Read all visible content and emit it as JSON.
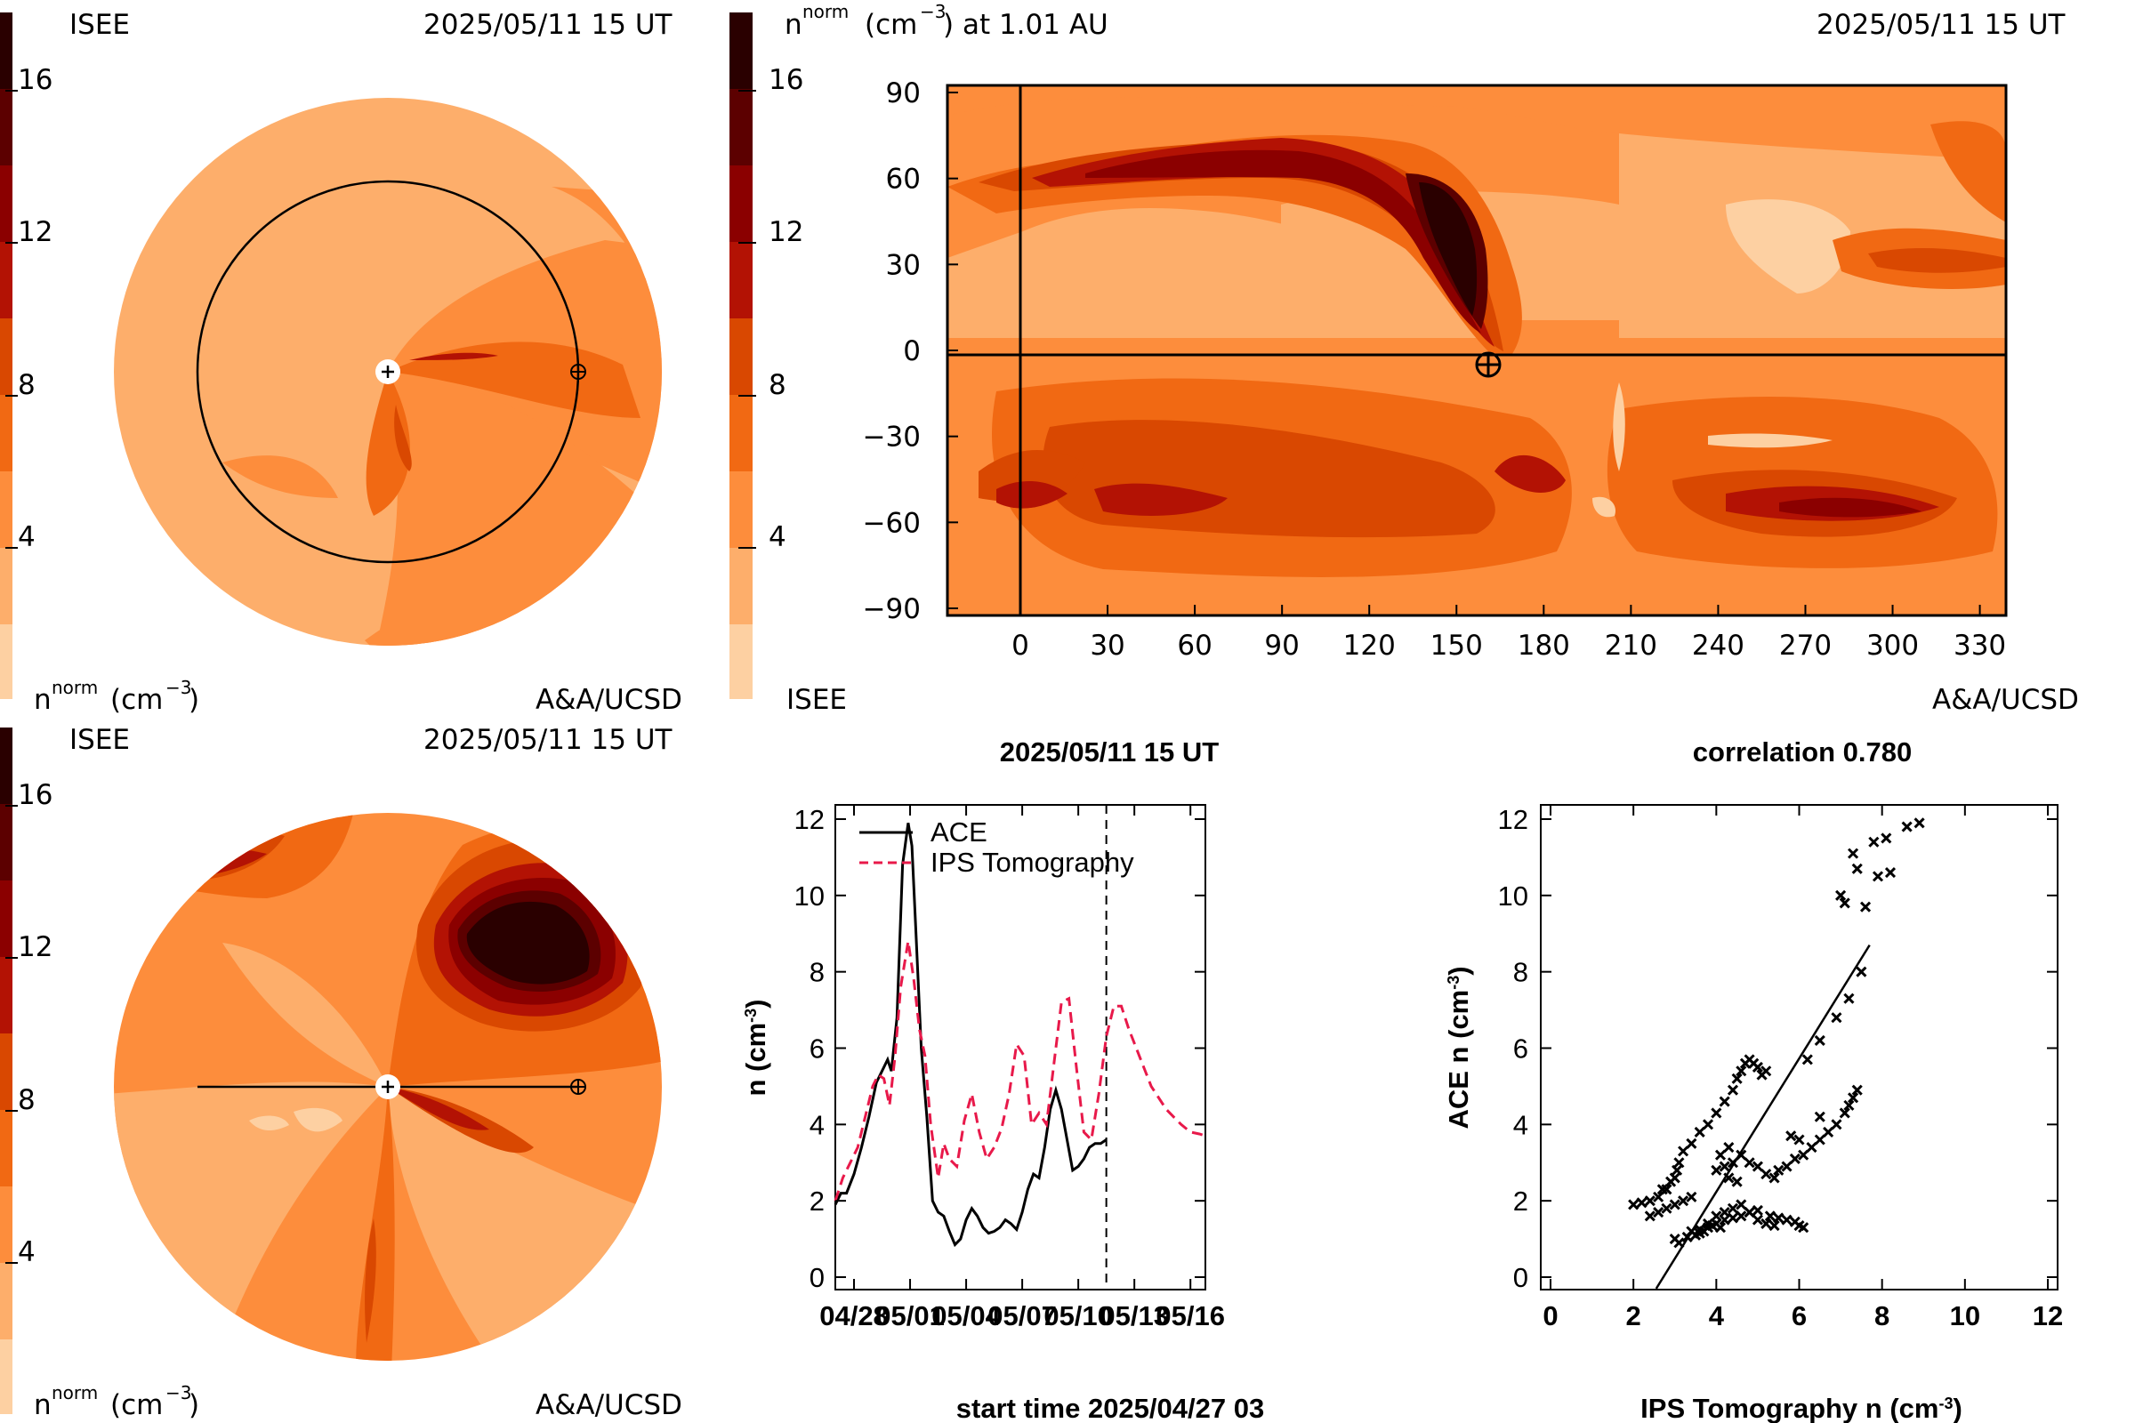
{
  "colors": {
    "scale": [
      "#fdd0a2",
      "#fdae6b",
      "#fd8d3c",
      "#f16913",
      "#d94801",
      "#b31204",
      "#8b0000",
      "#5c0000",
      "#2a0000"
    ],
    "ips_line": "#e8194a",
    "ace_line": "#000000"
  },
  "top_left": {
    "org": "ISEE",
    "datetime": "2025/05/11 15 UT",
    "units_sup": "norm",
    "units_prefix": "n",
    "units_suffix": "(cm",
    "units_exp": "−3",
    "units_close": ")",
    "credit": "A&A/UCSD",
    "colorbar_ticks": [
      "4",
      "8",
      "12",
      "16"
    ]
  },
  "top_right": {
    "units_prefix": "n",
    "units_sup": "norm",
    "units_text": "(cm",
    "units_exp": "−3",
    "units_tail": ") at 1.01 AU",
    "datetime": "2025/05/11 15 UT",
    "org": "ISEE",
    "credit": "A&A/UCSD",
    "colorbar_ticks": [
      "4",
      "8",
      "12",
      "16"
    ],
    "x_ticks": [
      "0",
      "30",
      "60",
      "90",
      "120",
      "150",
      "180",
      "210",
      "240",
      "270",
      "300",
      "330"
    ],
    "y_ticks": [
      "90",
      "60",
      "30",
      "0",
      "−30",
      "−60",
      "−90"
    ]
  },
  "bottom_left": {
    "org": "ISEE",
    "datetime": "2025/05/11 15 UT",
    "units_prefix": "n",
    "units_sup": "norm",
    "units_suffix": "(cm",
    "units_exp": "−3",
    "units_close": ")",
    "credit": "A&A/UCSD",
    "colorbar_ticks": [
      "4",
      "8",
      "12",
      "16"
    ]
  },
  "chart_data": [
    {
      "type": "line",
      "title": "2025/05/11 15 UT",
      "xlabel": "start time 2025/04/27 03",
      "ylabel_main": "n (cm",
      "ylabel_exp": "-3",
      "ylabel_close": ")",
      "ylim": [
        0,
        12
      ],
      "yticks": [
        "0",
        "2",
        "4",
        "6",
        "8",
        "10",
        "12"
      ],
      "xticks": [
        "04/28",
        "05/01",
        "05/04",
        "05/07",
        "05/10",
        "05/13",
        "05/16"
      ],
      "xtick_days": [
        1.0,
        4.0,
        7.0,
        10.0,
        13.0,
        16.0,
        19.0
      ],
      "xlim_days": [
        0,
        19.8
      ],
      "now_marker_day": 14.5,
      "series": [
        {
          "name": "ACE",
          "x": [
            0,
            0.3,
            0.6,
            1.0,
            1.4,
            1.8,
            2.2,
            2.5,
            2.8,
            3.0,
            3.3,
            3.6,
            3.9,
            4.1,
            4.3,
            4.6,
            4.9,
            5.2,
            5.5,
            5.8,
            6.1,
            6.4,
            6.7,
            7.0,
            7.3,
            7.6,
            7.9,
            8.2,
            8.5,
            8.8,
            9.1,
            9.4,
            9.7,
            10.0,
            10.3,
            10.6,
            10.9,
            11.2,
            11.5,
            11.8,
            12.1,
            12.4,
            12.7,
            13.0,
            13.3,
            13.6,
            13.9,
            14.2,
            14.5
          ],
          "values": [
            1.9,
            2.2,
            2.2,
            2.7,
            3.4,
            4.2,
            5.1,
            5.4,
            5.7,
            5.4,
            6.8,
            10.8,
            11.9,
            11.3,
            9.2,
            6.0,
            4.2,
            2.0,
            1.7,
            1.6,
            1.2,
            0.85,
            1.0,
            1.5,
            1.8,
            1.6,
            1.3,
            1.15,
            1.2,
            1.3,
            1.5,
            1.4,
            1.25,
            1.7,
            2.3,
            2.7,
            2.6,
            3.4,
            4.4,
            4.9,
            4.4,
            3.6,
            2.8,
            2.9,
            3.1,
            3.4,
            3.5,
            3.5,
            3.6
          ]
        },
        {
          "name": "IPS Tomography",
          "x": [
            0,
            0.4,
            0.8,
            1.2,
            1.6,
            2.0,
            2.3,
            2.6,
            2.9,
            3.2,
            3.5,
            3.9,
            4.2,
            4.5,
            4.8,
            5.1,
            5.5,
            5.8,
            6.1,
            6.5,
            6.9,
            7.3,
            7.7,
            8.1,
            8.5,
            8.9,
            9.3,
            9.7,
            10.1,
            10.5,
            10.9,
            11.3,
            11.7,
            12.1,
            12.5,
            12.9,
            13.3,
            13.7,
            14.1,
            14.5,
            14.9,
            15.3,
            15.7,
            16.1,
            16.5,
            16.9,
            17.3,
            17.7,
            18.1,
            18.5,
            19.0,
            19.5,
            19.8
          ],
          "values": [
            2.0,
            2.6,
            3.0,
            3.4,
            4.2,
            5.0,
            5.3,
            5.2,
            4.5,
            5.8,
            7.6,
            8.8,
            7.8,
            6.5,
            5.8,
            4.0,
            2.6,
            3.5,
            3.1,
            2.9,
            4.1,
            4.8,
            3.8,
            3.1,
            3.4,
            3.9,
            4.8,
            6.1,
            5.8,
            4.0,
            4.3,
            4.0,
            5.6,
            7.2,
            7.3,
            5.5,
            3.8,
            3.6,
            4.8,
            6.3,
            7.1,
            7.1,
            6.5,
            6.0,
            5.5,
            5.0,
            4.7,
            4.4,
            4.2,
            4.0,
            3.8,
            3.75,
            3.7
          ]
        }
      ]
    },
    {
      "type": "scatter",
      "title": "correlation 0.780",
      "xlabel_main": "IPS Tomography n (cm",
      "xlabel_exp": "-3",
      "xlabel_close": ")",
      "ylabel_main": "ACE n (cm",
      "ylabel_exp": "-3",
      "ylabel_close": ")",
      "xlim": [
        0,
        12
      ],
      "ylim": [
        0,
        12
      ],
      "xticks": [
        "0",
        "2",
        "4",
        "6",
        "8",
        "10",
        "12"
      ],
      "yticks": [
        "0",
        "2",
        "4",
        "6",
        "8",
        "10",
        "12"
      ],
      "fit_line": {
        "x": [
          2.55,
          7.7
        ],
        "y": [
          -0.3,
          8.7
        ]
      },
      "points": [
        [
          2.0,
          1.9
        ],
        [
          2.2,
          1.95
        ],
        [
          2.4,
          2.0
        ],
        [
          2.6,
          2.1
        ],
        [
          2.7,
          2.3
        ],
        [
          2.8,
          2.3
        ],
        [
          2.9,
          2.5
        ],
        [
          3.0,
          2.6
        ],
        [
          3.05,
          2.8
        ],
        [
          3.1,
          3.0
        ],
        [
          3.2,
          3.3
        ],
        [
          3.4,
          3.5
        ],
        [
          3.6,
          3.8
        ],
        [
          3.8,
          4.0
        ],
        [
          4.0,
          4.3
        ],
        [
          4.2,
          4.6
        ],
        [
          4.4,
          4.9
        ],
        [
          4.5,
          5.2
        ],
        [
          4.6,
          5.4
        ],
        [
          4.7,
          5.6
        ],
        [
          4.8,
          5.7
        ],
        [
          4.9,
          5.6
        ],
        [
          5.0,
          5.5
        ],
        [
          5.1,
          5.3
        ],
        [
          5.2,
          5.4
        ],
        [
          2.4,
          1.6
        ],
        [
          2.6,
          1.7
        ],
        [
          2.8,
          1.8
        ],
        [
          3.0,
          1.9
        ],
        [
          3.2,
          2.0
        ],
        [
          3.4,
          2.1
        ],
        [
          3.0,
          1.0
        ],
        [
          3.1,
          0.9
        ],
        [
          3.3,
          1.05
        ],
        [
          3.5,
          1.1
        ],
        [
          3.6,
          1.15
        ],
        [
          3.7,
          1.2
        ],
        [
          3.8,
          1.3
        ],
        [
          3.9,
          1.35
        ],
        [
          4.0,
          1.4
        ],
        [
          4.1,
          1.3
        ],
        [
          4.2,
          1.5
        ],
        [
          4.4,
          1.55
        ],
        [
          4.6,
          1.6
        ],
        [
          4.8,
          1.7
        ],
        [
          5.0,
          1.75
        ],
        [
          5.3,
          1.6
        ],
        [
          5.5,
          1.55
        ],
        [
          5.7,
          1.5
        ],
        [
          5.9,
          1.45
        ],
        [
          6.0,
          1.35
        ],
        [
          6.1,
          1.3
        ],
        [
          3.4,
          1.2
        ],
        [
          3.6,
          1.25
        ],
        [
          3.8,
          1.4
        ],
        [
          4.0,
          1.6
        ],
        [
          4.2,
          1.7
        ],
        [
          4.4,
          1.8
        ],
        [
          4.6,
          1.9
        ],
        [
          4.8,
          1.7
        ],
        [
          5.0,
          1.5
        ],
        [
          5.2,
          1.4
        ],
        [
          5.4,
          1.35
        ],
        [
          4.0,
          2.8
        ],
        [
          4.2,
          2.9
        ],
        [
          4.4,
          3.0
        ],
        [
          4.6,
          3.2
        ],
        [
          4.8,
          3.0
        ],
        [
          5.0,
          2.9
        ],
        [
          5.2,
          2.7
        ],
        [
          5.4,
          2.6
        ],
        [
          5.5,
          2.8
        ],
        [
          5.7,
          2.9
        ],
        [
          5.9,
          3.1
        ],
        [
          6.1,
          3.2
        ],
        [
          6.3,
          3.4
        ],
        [
          6.5,
          3.6
        ],
        [
          6.7,
          3.8
        ],
        [
          6.9,
          4.0
        ],
        [
          7.1,
          4.3
        ],
        [
          7.2,
          4.5
        ],
        [
          7.3,
          4.7
        ],
        [
          6.0,
          3.6
        ],
        [
          5.8,
          3.7
        ],
        [
          4.3,
          2.6
        ],
        [
          4.5,
          2.5
        ],
        [
          6.5,
          4.2
        ],
        [
          7.4,
          4.9
        ],
        [
          4.3,
          3.4
        ],
        [
          4.1,
          3.2
        ],
        [
          6.2,
          5.7
        ],
        [
          6.5,
          6.2
        ],
        [
          6.9,
          6.8
        ],
        [
          7.2,
          7.3
        ],
        [
          7.5,
          8.0
        ],
        [
          7.0,
          10.0
        ],
        [
          7.1,
          9.8
        ],
        [
          7.6,
          9.7
        ],
        [
          7.8,
          11.4
        ],
        [
          8.1,
          11.5
        ],
        [
          8.2,
          10.6
        ],
        [
          7.9,
          10.5
        ],
        [
          8.6,
          11.8
        ],
        [
          8.9,
          11.9
        ],
        [
          7.4,
          10.7
        ],
        [
          7.3,
          11.1
        ]
      ]
    }
  ]
}
